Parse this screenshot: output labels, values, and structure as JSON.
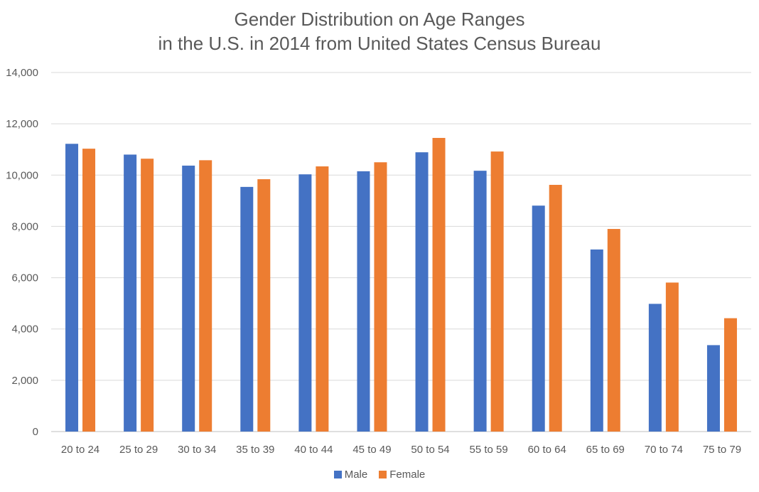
{
  "chart_data": {
    "type": "bar",
    "title_lines": [
      "Gender Distribution on Age Ranges",
      "in the U.S. in 2014 from United States Census Bureau"
    ],
    "xlabel": "",
    "ylabel": "",
    "ylim": [
      0,
      14000
    ],
    "y_ticks": [
      0,
      2000,
      4000,
      6000,
      8000,
      10000,
      12000,
      14000
    ],
    "y_tick_labels": [
      "0",
      "2,000",
      "4,000",
      "6,000",
      "8,000",
      "10,000",
      "12,000",
      "14,000"
    ],
    "grid": true,
    "legend_position": "bottom",
    "categories": [
      "20 to 24",
      "25 to 29",
      "30 to 34",
      "35 to 39",
      "40 to 44",
      "45 to 49",
      "50 to 54",
      "55 to 59",
      "60 to 64",
      "65 to 69",
      "70 to 74",
      "75 to 79"
    ],
    "series": [
      {
        "name": "Male",
        "color": "#4472C4",
        "values": [
          11220,
          10800,
          10370,
          9540,
          10030,
          10150,
          10890,
          10170,
          8810,
          7100,
          4980,
          3370
        ]
      },
      {
        "name": "Female",
        "color": "#ED7D31",
        "values": [
          11030,
          10640,
          10580,
          9840,
          10340,
          10500,
          11450,
          10920,
          9620,
          7900,
          5810,
          4420
        ]
      }
    ]
  }
}
